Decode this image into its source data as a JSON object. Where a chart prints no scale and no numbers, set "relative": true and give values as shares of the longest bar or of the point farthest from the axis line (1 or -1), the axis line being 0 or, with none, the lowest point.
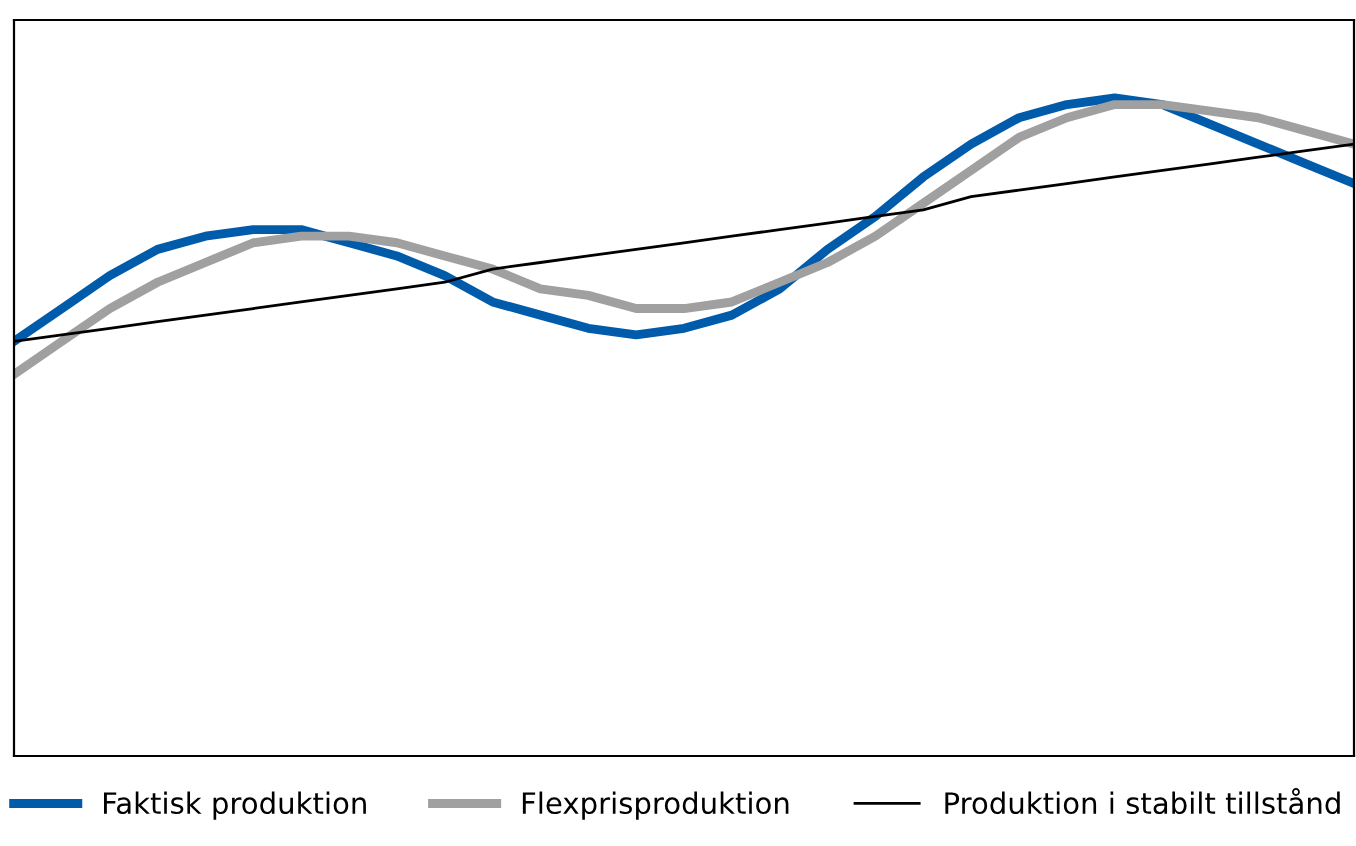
{
  "chart_data": {
    "type": "line",
    "relative": true,
    "legend": "bottom",
    "categories": [
      null,
      null,
      null,
      null,
      null,
      null,
      null,
      null,
      null,
      null,
      null,
      null,
      null,
      null,
      null,
      null,
      null,
      null,
      null,
      null,
      null,
      null,
      null,
      null,
      null,
      null,
      null,
      null,
      null
    ],
    "series": [
      {
        "name": "Faktisk produktion",
        "color": "#005baa",
        "values": [
          0.63,
          0.68,
          0.73,
          0.77,
          0.79,
          0.8,
          0.8,
          0.78,
          0.76,
          0.73,
          0.69,
          0.67,
          0.65,
          0.64,
          0.65,
          0.67,
          0.71,
          0.77,
          0.82,
          0.88,
          0.93,
          0.97,
          0.99,
          1.0,
          0.99,
          0.96,
          0.93,
          0.9,
          0.87
        ]
      },
      {
        "name": "Flexprisproduktion",
        "color": "#a0a0a0",
        "values": [
          0.58,
          0.63,
          0.68,
          0.72,
          0.75,
          0.78,
          0.79,
          0.79,
          0.78,
          0.76,
          0.74,
          0.71,
          0.7,
          0.68,
          0.68,
          0.69,
          0.72,
          0.75,
          0.79,
          0.84,
          0.89,
          0.94,
          0.97,
          0.99,
          0.99,
          0.98,
          0.97,
          0.95,
          0.93
        ]
      },
      {
        "name": "Produktion i stabilt tillstånd",
        "color": "#000000",
        "values": [
          0.63,
          0.64,
          0.65,
          0.66,
          0.67,
          0.68,
          0.69,
          0.7,
          0.71,
          0.72,
          0.74,
          0.75,
          0.76,
          0.77,
          0.78,
          0.79,
          0.8,
          0.81,
          0.82,
          0.83,
          0.85,
          0.86,
          0.87,
          0.88,
          0.89,
          0.9,
          0.91,
          0.92,
          0.93
        ]
      }
    ]
  }
}
